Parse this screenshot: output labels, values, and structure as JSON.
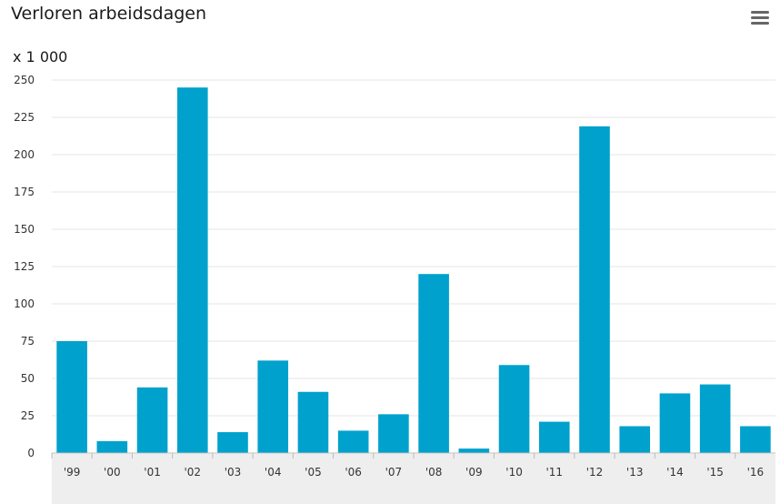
{
  "header": {
    "title": "Verloren arbeidsdagen",
    "unit_label": "x 1 000",
    "menu_icon": "hamburger-menu-icon"
  },
  "chart_data": {
    "type": "bar",
    "title": "Verloren arbeidsdagen",
    "ylabel": "x 1 000",
    "xlabel": "",
    "categories": [
      "'99",
      "'00",
      "'01",
      "'02",
      "'03",
      "'04",
      "'05",
      "'06",
      "'07",
      "'08",
      "'09",
      "'10",
      "'11",
      "'12",
      "'13",
      "'14",
      "'15",
      "'16"
    ],
    "values": [
      75,
      8,
      44,
      245,
      14,
      62,
      41,
      15,
      26,
      120,
      3,
      59,
      21,
      219,
      18,
      40,
      46,
      18
    ],
    "ylim": [
      0,
      250
    ],
    "yticks": [
      0,
      25,
      50,
      75,
      100,
      125,
      150,
      175,
      200,
      225,
      250
    ],
    "grid": true,
    "legend": "none",
    "colors": {
      "bar": "#00a1cd",
      "grid": "#e6e6e6",
      "axis": "#bbbbbb",
      "scrollbar": "#eeeeee"
    }
  }
}
